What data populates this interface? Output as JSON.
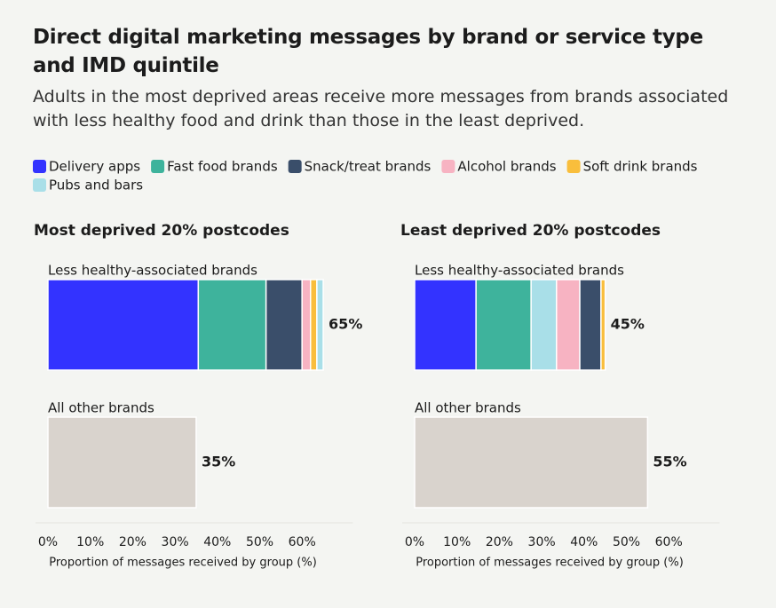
{
  "title": "Direct digital marketing messages by brand or service type and IMD quintile",
  "subtitle": "Adults in the most deprived areas receive more messages from brands associated with less healthy food and drink than those in the least deprived.",
  "chart_data": [
    {
      "type": "bar",
      "orientation": "horizontal",
      "stacked": true,
      "title": "Most deprived 20% postcodes",
      "categories": [
        "Less healthy-associated brands",
        "All other brands"
      ],
      "series": [
        {
          "name": "Delivery apps",
          "color": "#3333ff",
          "values": [
            35.5,
            null
          ]
        },
        {
          "name": "Fast food brands",
          "color": "#3eb39c",
          "values": [
            16,
            null
          ]
        },
        {
          "name": "Snack/treat brands",
          "color": "#3a4e6a",
          "values": [
            8.5,
            null
          ]
        },
        {
          "name": "Alcohol brands",
          "color": "#f7b3c2",
          "values": [
            2,
            null
          ]
        },
        {
          "name": "Soft drink brands",
          "color": "#f9be3c",
          "values": [
            1.5,
            null
          ]
        },
        {
          "name": "Pubs and bars",
          "color": "#a9dfe8",
          "values": [
            1.5,
            null
          ]
        },
        {
          "color": "#d9d3cd",
          "values": [
            null,
            35
          ]
        }
      ],
      "totals": [
        65,
        35
      ],
      "value_labels": [
        "65%",
        "35%"
      ],
      "xlim": [
        0,
        72
      ],
      "xticks": [
        {
          "value": 0,
          "label": "0%"
        },
        {
          "value": 10,
          "label": "10%"
        },
        {
          "value": 20,
          "label": "20%"
        },
        {
          "value": 30,
          "label": "30%"
        },
        {
          "value": 40,
          "label": "40%"
        },
        {
          "value": 50,
          "label": "50%"
        },
        {
          "value": 60,
          "label": "60%"
        }
      ],
      "xlabel": "Proportion of messages received by group (%)"
    },
    {
      "type": "bar",
      "orientation": "horizontal",
      "stacked": true,
      "title": "Least deprived 20% postcodes",
      "categories": [
        "Less healthy-associated brands",
        "All other brands"
      ],
      "series": [
        {
          "name": "Delivery apps",
          "values": [
            14.5,
            null
          ]
        },
        {
          "name": "Fast food brands",
          "values": [
            13,
            null
          ]
        },
        {
          "name": "Pubs and bars",
          "values": [
            6,
            null
          ]
        },
        {
          "name": "Alcohol brands",
          "values": [
            5.5,
            null
          ]
        },
        {
          "name": "Snack/treat brands",
          "values": [
            5,
            null
          ]
        },
        {
          "name": "Soft drink brands",
          "values": [
            1,
            null
          ]
        },
        {
          "color": "#d9d3cd",
          "values": [
            null,
            55
          ]
        }
      ],
      "totals": [
        45,
        55
      ],
      "value_labels": [
        "45%",
        "55%"
      ],
      "xlim": [
        0,
        72
      ],
      "xticks": [
        {
          "value": 0,
          "label": "0%"
        },
        {
          "value": 10,
          "label": "10%"
        },
        {
          "value": 20,
          "label": "20%"
        },
        {
          "value": 30,
          "label": "30%"
        },
        {
          "value": 40,
          "label": "40%"
        },
        {
          "value": 50,
          "label": "50%"
        },
        {
          "value": 60,
          "label": "60%"
        }
      ],
      "xlabel": "Proportion of messages received by group (%)"
    }
  ]
}
